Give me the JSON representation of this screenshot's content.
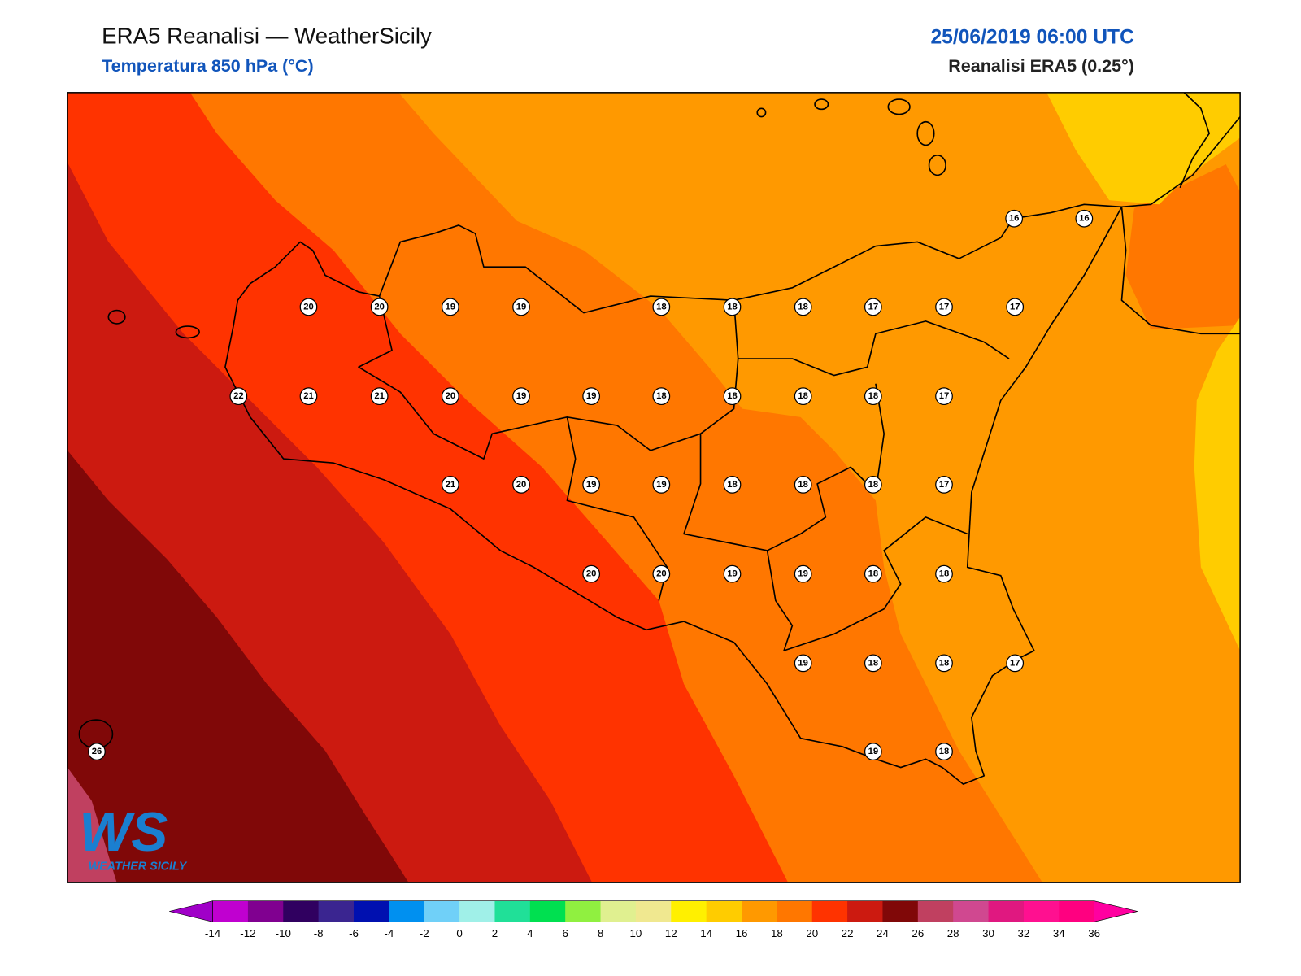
{
  "header": {
    "title": "ERA5 Reanalisi — WeatherSicily",
    "subtitle": "Temperatura 850 hPa (°C)",
    "date": "25/06/2019 06:00 UTC",
    "source": "Reanalisi ERA5 (0.25°)"
  },
  "stations": [
    16,
    16,
    20,
    20,
    19,
    19,
    18,
    18,
    18,
    17,
    17,
    17,
    22,
    21,
    21,
    20,
    19,
    19,
    18,
    18,
    18,
    18,
    17,
    21,
    20,
    19,
    19,
    18,
    18,
    18,
    17,
    20,
    20,
    19,
    19,
    18,
    18,
    19,
    18,
    18,
    17,
    26,
    19,
    18
  ],
  "logo": {
    "mark": "WS",
    "text": "WEATHER SICILY"
  },
  "colorbar": {
    "ticks": [
      -14,
      -12,
      -10,
      -8,
      -6,
      -4,
      -2,
      0,
      2,
      4,
      6,
      8,
      10,
      12,
      14,
      16,
      18,
      20,
      22,
      24,
      26,
      28,
      30,
      32,
      34,
      36
    ],
    "colors": [
      "#a000c8",
      "#c000d0",
      "#800090",
      "#300060",
      "#3a2590",
      "#0010b0",
      "#0090f0",
      "#70d0f8",
      "#a0f0e8",
      "#20e098",
      "#00e050",
      "#90f040",
      "#e0f090",
      "#f0e890",
      "#fff000",
      "#ffcc00",
      "#ff9900",
      "#ff7700",
      "#ff3300",
      "#cc1a10",
      "#800808",
      "#c04060",
      "#d04890",
      "#e01880",
      "#ff1090",
      "#ff0080",
      "#ff00a0"
    ]
  }
}
